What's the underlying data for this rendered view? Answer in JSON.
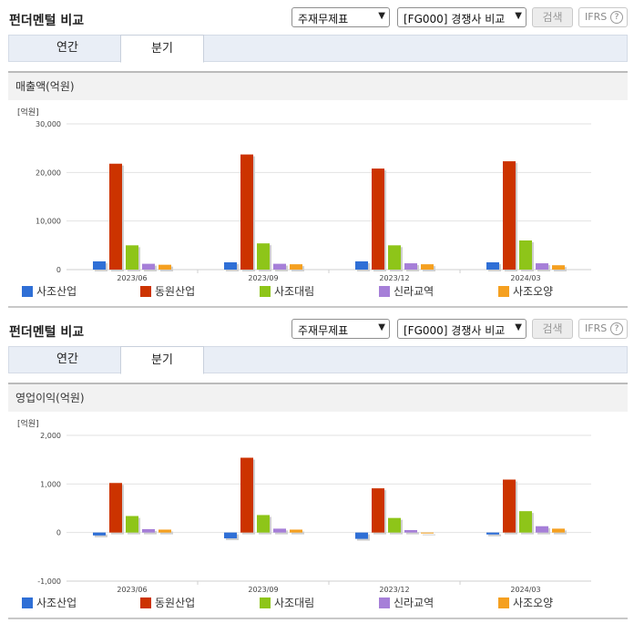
{
  "panels": [
    {
      "title": "펀더멘털 비교",
      "select1": "주재무제표",
      "select2": "[FG000] 경쟁사 비교",
      "search_label": "검색",
      "ifrs_label": "IFRS",
      "ifrs_help": "?",
      "tabs": [
        "연간",
        "분기"
      ],
      "active_tab": "분기",
      "subtitle": "매출액(억원)",
      "unit": "[억원]"
    },
    {
      "title": "펀더멘털 비교",
      "select1": "주재무제표",
      "select2": "[FG000] 경쟁사 비교",
      "search_label": "검색",
      "ifrs_label": "IFRS",
      "ifrs_help": "?",
      "tabs": [
        "연간",
        "분기"
      ],
      "active_tab": "분기",
      "subtitle": "영업이익(억원)",
      "unit": "[억원]"
    }
  ],
  "legend": [
    {
      "name": "사조산업",
      "color": "#2f6fd6"
    },
    {
      "name": "동원산업",
      "color": "#cc3300"
    },
    {
      "name": "사조대림",
      "color": "#8ec519"
    },
    {
      "name": "신라교역",
      "color": "#a67fd8"
    },
    {
      "name": "사조오양",
      "color": "#f5a020"
    }
  ],
  "chart_data": [
    {
      "type": "bar",
      "title": "매출액(억원)",
      "ylabel": "[억원]",
      "categories": [
        "2023/06",
        "2023/09",
        "2023/12",
        "2024/03"
      ],
      "ylim": [
        0,
        30000
      ],
      "yticks": [
        0,
        10000,
        20000,
        30000
      ],
      "ytick_labels": [
        "0",
        "10,000",
        "20,000",
        "30,000"
      ],
      "series": [
        {
          "name": "사조산업",
          "values": [
            1700,
            1500,
            1700,
            1500
          ]
        },
        {
          "name": "동원산업",
          "values": [
            21800,
            23700,
            20800,
            22300
          ]
        },
        {
          "name": "사조대림",
          "values": [
            5000,
            5400,
            5000,
            6000
          ]
        },
        {
          "name": "신라교역",
          "values": [
            1200,
            1200,
            1300,
            1300
          ]
        },
        {
          "name": "사조오양",
          "values": [
            1000,
            1100,
            1100,
            900
          ]
        }
      ]
    },
    {
      "type": "bar",
      "title": "영업이익(억원)",
      "ylabel": "[억원]",
      "categories": [
        "2023/06",
        "2023/09",
        "2023/12",
        "2024/03"
      ],
      "ylim": [
        -1000,
        2000
      ],
      "yticks": [
        -1000,
        0,
        1000,
        2000
      ],
      "ytick_labels": [
        "-1,000",
        "0",
        "1,000",
        "2,000"
      ],
      "series": [
        {
          "name": "사조산업",
          "values": [
            -60,
            -120,
            -130,
            -40
          ]
        },
        {
          "name": "동원산업",
          "values": [
            1020,
            1540,
            910,
            1090
          ]
        },
        {
          "name": "사조대림",
          "values": [
            340,
            360,
            300,
            440
          ]
        },
        {
          "name": "신라교역",
          "values": [
            70,
            80,
            50,
            130
          ]
        },
        {
          "name": "사조오양",
          "values": [
            60,
            60,
            -10,
            80
          ]
        }
      ]
    }
  ]
}
